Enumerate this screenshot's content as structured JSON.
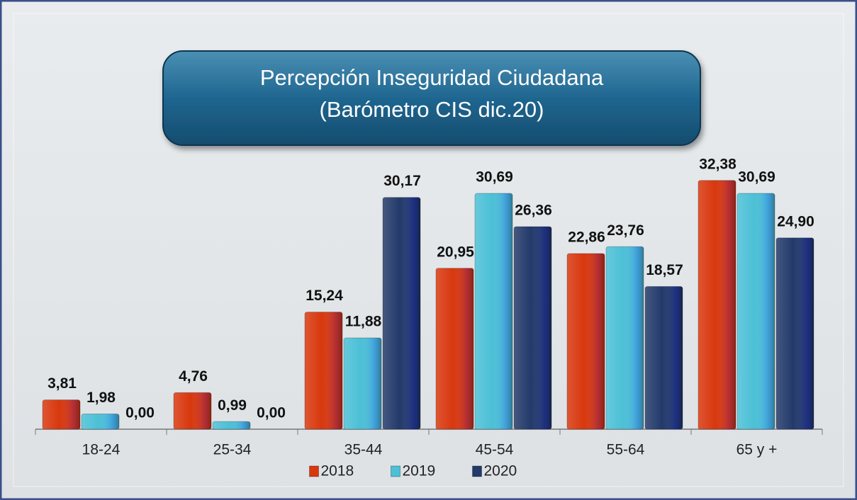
{
  "chart_data": {
    "type": "bar",
    "title": "Percepción Inseguridad Ciudadana",
    "subtitle": "(Barómetro CIS dic.20)",
    "categories": [
      "18-24",
      "25-34",
      "35-44",
      "45-54",
      "55-64",
      "65 y +"
    ],
    "series": [
      {
        "name": "2018",
        "color": "#d8380e",
        "values": [
          3.81,
          4.76,
          15.24,
          20.95,
          22.86,
          32.38
        ],
        "value_labels": [
          "3,81",
          "4,76",
          "15,24",
          "20,95",
          "22,86",
          "32,38"
        ]
      },
      {
        "name": "2019",
        "color": "#4cc0d6",
        "values": [
          1.98,
          0.99,
          11.88,
          30.69,
          23.76,
          30.69
        ],
        "value_labels": [
          "1,98",
          "0,99",
          "11,88",
          "30,69",
          "23,76",
          "30,69"
        ]
      },
      {
        "name": "2020",
        "color": "#233a6a",
        "values": [
          0,
          0,
          30.17,
          26.36,
          18.57,
          24.9
        ],
        "value_labels": [
          "0,00",
          "0,00",
          "30,17",
          "26,36",
          "18,57",
          "24,90"
        ]
      }
    ],
    "ylim": [
      0,
      33
    ],
    "legend": "bottom"
  }
}
